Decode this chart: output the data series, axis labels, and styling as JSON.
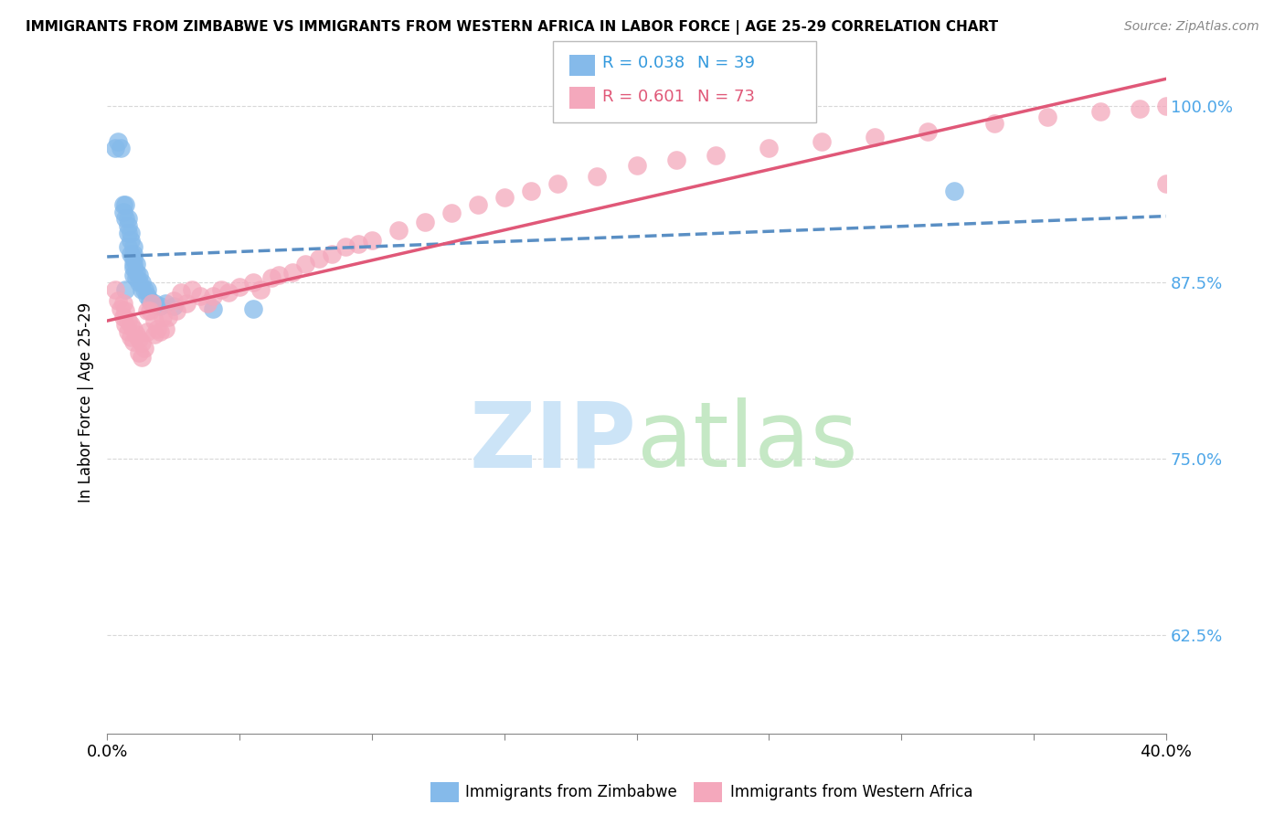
{
  "title": "IMMIGRANTS FROM ZIMBABWE VS IMMIGRANTS FROM WESTERN AFRICA IN LABOR FORCE | AGE 25-29 CORRELATION CHART",
  "source": "Source: ZipAtlas.com",
  "ylabel": "In Labor Force | Age 25-29",
  "xlim": [
    0.0,
    0.4
  ],
  "ylim": [
    0.555,
    1.025
  ],
  "yticks": [
    0.625,
    0.75,
    0.875,
    1.0
  ],
  "ytick_labels": [
    "62.5%",
    "75.0%",
    "87.5%",
    "100.0%"
  ],
  "xticks": [
    0.0,
    0.05,
    0.1,
    0.15,
    0.2,
    0.25,
    0.3,
    0.35,
    0.4
  ],
  "legend_r_zimbabwe": "R = 0.038",
  "legend_n_zimbabwe": "N = 39",
  "legend_r_western": "R = 0.601",
  "legend_n_western": "N = 73",
  "legend_label_zimbabwe": "Immigrants from Zimbabwe",
  "legend_label_western": "Immigrants from Western Africa",
  "color_zimbabwe": "#85baea",
  "color_western": "#f4a8bc",
  "trendline_color_zimbabwe": "#5a8fc4",
  "trendline_color_western": "#e05878",
  "background_color": "#ffffff",
  "grid_color": "#d8d8d8",
  "zimbabwe_x": [
    0.003,
    0.004,
    0.005,
    0.006,
    0.006,
    0.007,
    0.007,
    0.007,
    0.008,
    0.008,
    0.008,
    0.008,
    0.009,
    0.009,
    0.009,
    0.01,
    0.01,
    0.01,
    0.01,
    0.01,
    0.01,
    0.011,
    0.011,
    0.011,
    0.012,
    0.012,
    0.013,
    0.013,
    0.014,
    0.015,
    0.015,
    0.016,
    0.018,
    0.02,
    0.022,
    0.025,
    0.04,
    0.055,
    0.32
  ],
  "zimbabwe_y": [
    0.97,
    0.975,
    0.97,
    0.93,
    0.925,
    0.93,
    0.92,
    0.87,
    0.92,
    0.915,
    0.91,
    0.9,
    0.91,
    0.905,
    0.895,
    0.9,
    0.895,
    0.892,
    0.888,
    0.885,
    0.88,
    0.888,
    0.882,
    0.878,
    0.88,
    0.875,
    0.875,
    0.87,
    0.87,
    0.87,
    0.865,
    0.862,
    0.86,
    0.858,
    0.86,
    0.858,
    0.856,
    0.856,
    0.94
  ],
  "western_x": [
    0.003,
    0.004,
    0.005,
    0.006,
    0.006,
    0.007,
    0.007,
    0.008,
    0.008,
    0.009,
    0.009,
    0.01,
    0.01,
    0.011,
    0.012,
    0.012,
    0.013,
    0.013,
    0.014,
    0.015,
    0.015,
    0.016,
    0.017,
    0.018,
    0.018,
    0.019,
    0.02,
    0.021,
    0.022,
    0.023,
    0.025,
    0.026,
    0.028,
    0.03,
    0.032,
    0.035,
    0.038,
    0.04,
    0.043,
    0.046,
    0.05,
    0.055,
    0.058,
    0.062,
    0.065,
    0.07,
    0.075,
    0.08,
    0.085,
    0.09,
    0.095,
    0.1,
    0.11,
    0.12,
    0.13,
    0.14,
    0.15,
    0.16,
    0.17,
    0.185,
    0.2,
    0.215,
    0.23,
    0.25,
    0.27,
    0.29,
    0.31,
    0.335,
    0.355,
    0.375,
    0.39,
    0.4,
    0.4
  ],
  "western_y": [
    0.87,
    0.862,
    0.856,
    0.86,
    0.85,
    0.855,
    0.845,
    0.848,
    0.84,
    0.845,
    0.836,
    0.842,
    0.833,
    0.838,
    0.835,
    0.825,
    0.832,
    0.822,
    0.828,
    0.855,
    0.84,
    0.855,
    0.86,
    0.848,
    0.838,
    0.842,
    0.84,
    0.85,
    0.842,
    0.85,
    0.862,
    0.855,
    0.868,
    0.86,
    0.87,
    0.865,
    0.86,
    0.865,
    0.87,
    0.868,
    0.872,
    0.875,
    0.87,
    0.878,
    0.88,
    0.882,
    0.888,
    0.892,
    0.895,
    0.9,
    0.902,
    0.905,
    0.912,
    0.918,
    0.924,
    0.93,
    0.935,
    0.94,
    0.945,
    0.95,
    0.958,
    0.962,
    0.965,
    0.97,
    0.975,
    0.978,
    0.982,
    0.988,
    0.992,
    0.996,
    0.998,
    1.0,
    0.945
  ]
}
